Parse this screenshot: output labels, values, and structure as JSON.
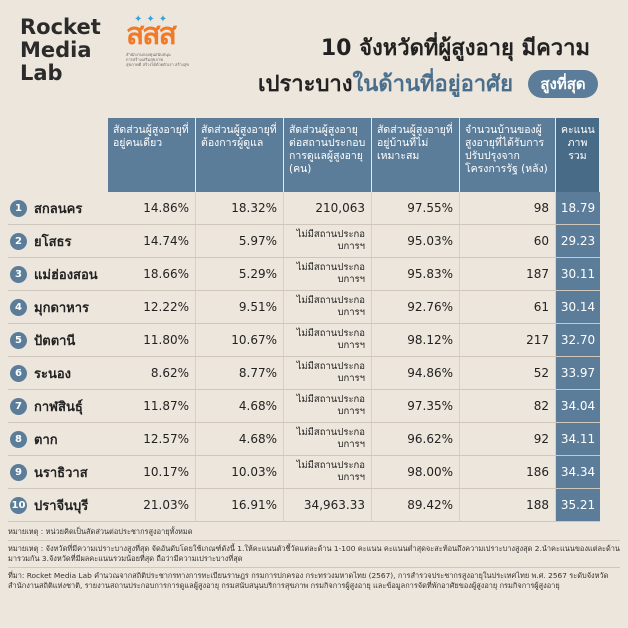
{
  "brand": {
    "line1": "Rocket",
    "line2": "Media",
    "line3": "Lab"
  },
  "partner_logo": {
    "mark": "สสส",
    "tagline1": "สำนักงานกองทุนสนับสนุน",
    "tagline2": "การสร้างเสริมสุขภาพ",
    "tagline3": "สุขภาพดี สร้างได้ด้วยตัวเรา สร้างสุข"
  },
  "title": {
    "line1": "10 จังหวัดที่ผู้สูงอายุ มีความ",
    "line2_dark": "เปราะบาง",
    "line2_blue": "ในด้านที่อยู่อาศัย",
    "badge": "สูงที่สุด"
  },
  "headers": [
    "สัดส่วนผู้สูงอายุที่อยู่คนเดียว",
    "สัดส่วนผู้สูงอายุที่ต้องการผู้ดูแล",
    "สัดส่วนผู้สูงอายุต่อสถานประกอบการดูแลผู้สูงอายุ (คน)",
    "สัดส่วนผู้สูงอายุที่อยู่บ้านที่ไม่เหมาะสม",
    "จำนวนบ้านของผู้สูงอายุที่ได้รับการปรับปรุงจากโครงการรัฐ (หลัง)",
    "คะแนนภาพรวม"
  ],
  "rows": [
    {
      "rank": "1",
      "province": "สกลนคร",
      "alone": "14.86%",
      "care": "18.32%",
      "ratio": "210,063",
      "unfit": "97.55%",
      "homes": "98",
      "score": "18.79"
    },
    {
      "rank": "2",
      "province": "ยโสธร",
      "alone": "14.74%",
      "care": "5.97%",
      "ratio": "ไม่มีสถานประกอบการฯ",
      "unfit": "95.03%",
      "homes": "60",
      "score": "29.23"
    },
    {
      "rank": "3",
      "province": "แม่ฮ่องสอน",
      "alone": "18.66%",
      "care": "5.29%",
      "ratio": "ไม่มีสถานประกอบการฯ",
      "unfit": "95.83%",
      "homes": "187",
      "score": "30.11"
    },
    {
      "rank": "4",
      "province": "มุกดาหาร",
      "alone": "12.22%",
      "care": "9.51%",
      "ratio": "ไม่มีสถานประกอบการฯ",
      "unfit": "92.76%",
      "homes": "61",
      "score": "30.14"
    },
    {
      "rank": "5",
      "province": "ปัตตานี",
      "alone": "11.80%",
      "care": "10.67%",
      "ratio": "ไม่มีสถานประกอบการฯ",
      "unfit": "98.12%",
      "homes": "217",
      "score": "32.70"
    },
    {
      "rank": "6",
      "province": "ระนอง",
      "alone": "8.62%",
      "care": "8.77%",
      "ratio": "ไม่มีสถานประกอบการฯ",
      "unfit": "94.86%",
      "homes": "52",
      "score": "33.97"
    },
    {
      "rank": "7",
      "province": "กาฬสินธุ์",
      "alone": "11.87%",
      "care": "4.68%",
      "ratio": "ไม่มีสถานประกอบการฯ",
      "unfit": "97.35%",
      "homes": "82",
      "score": "34.04"
    },
    {
      "rank": "8",
      "province": "ตาก",
      "alone": "12.57%",
      "care": "4.68%",
      "ratio": "ไม่มีสถานประกอบการฯ",
      "unfit": "96.62%",
      "homes": "92",
      "score": "34.11"
    },
    {
      "rank": "9",
      "province": "นราธิวาส",
      "alone": "10.17%",
      "care": "10.03%",
      "ratio": "ไม่มีสถานประกอบการฯ",
      "unfit": "98.00%",
      "homes": "186",
      "score": "34.34"
    },
    {
      "rank": "10",
      "province": "ปราจีนบุรี",
      "alone": "21.03%",
      "care": "16.91%",
      "ratio": "34,963.33",
      "unfit": "89.42%",
      "homes": "188",
      "score": "35.21"
    }
  ],
  "notes": {
    "n1": "หมายเหตุ : หน่วยคิดเป็นสัดส่วนต่อประชากรสูงอายุทั้งหมด",
    "n2": "หมายเหตุ : จังหวัดที่มีความเปราะบางสูงที่สุด จัดอันดับโดยใช้เกณฑ์ดังนี้ 1.ให้คะแนนตัวชี้วัดแต่ละด้าน 1-100 คะแนน คะแนนต่ำสุดจะสะท้อนถึงความเปราะบางสูงสุด 2.นำคะแนนของแต่ละด้านมารวมกัน 3.จังหวัดที่มีผลคะแนนรวมน้อยที่สุด ถือว่ามีความเปราะบางที่สุด",
    "n3": "ที่มา: Rocket Media Lab คำนวณจากสถิติประชากรทางการทะเบียนราษฎร กรมการปกครอง กระทรวงมหาดไทย (2567), การสำรวจประชากรสูงอายุในประเทศไทย พ.ศ. 2567 ระดับจังหวัด สำนักงานสถิติแห่งชาติ, รายงานสถานประกอบการการดูแลผู้สูงอายุ กรมสนับสนุนบริการสุขภาพ กรมกิจการผู้สูงอายุ และข้อมูลการจัดที่พักอาศัยของผู้สูงอายุ กรมกิจการผู้สูงอายุ"
  }
}
